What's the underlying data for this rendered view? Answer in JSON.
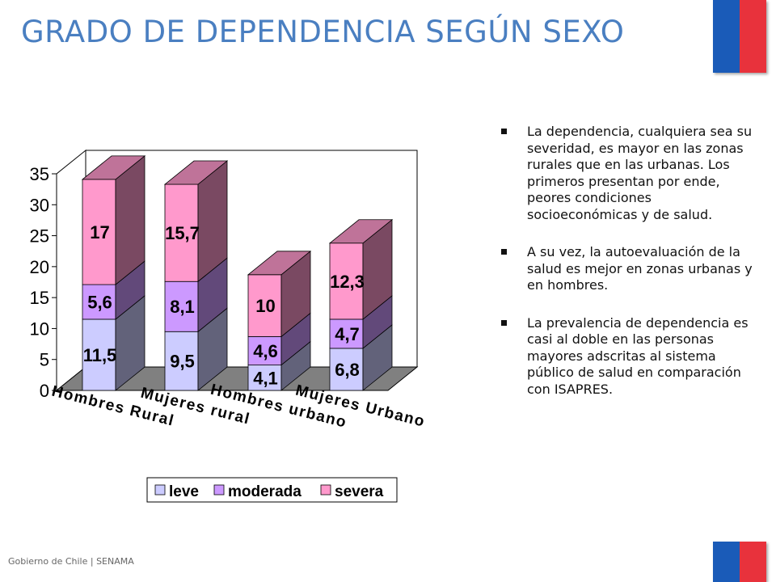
{
  "slide": {
    "title": "GRADO DE DEPENDENCIA SEGÚN SEXO",
    "footer": "Gobierno de Chile | SENAMA",
    "flag_colors": {
      "blue": "#1a5bb8",
      "red": "#e8323c"
    }
  },
  "bullets": [
    "La dependencia, cualquiera sea su severidad, es mayor en las zonas rurales que en las urbanas. Los primeros presentan por ende, peores condiciones socioeconómicas y de salud.",
    "A su vez, la autoevaluación de la salud es mejor en zonas urbanas y en hombres.",
    "La prevalencia de dependencia es casi al doble en las personas mayores adscritas al sistema público de salud en comparación con ISAPRES."
  ],
  "chart_data": {
    "type": "bar",
    "stacked": true,
    "style": "3d",
    "categories": [
      "Hombres Rural",
      "Mujeres rural",
      "Hombres urbano",
      "Mujeres Urbano"
    ],
    "series": [
      {
        "name": "leve",
        "values": [
          11.5,
          9.5,
          4.1,
          6.8
        ],
        "labels": [
          "11,5",
          "9,5",
          "4,1",
          "6,8"
        ],
        "color": "#ccccff"
      },
      {
        "name": "moderada",
        "values": [
          5.6,
          8.1,
          4.6,
          4.7
        ],
        "labels": [
          "5,6",
          "8,1",
          "4,6",
          "4,7"
        ],
        "color": "#cc99ff"
      },
      {
        "name": "severa",
        "values": [
          17,
          15.7,
          10,
          12.3
        ],
        "labels": [
          "17",
          "15,7",
          "10",
          "12,3"
        ],
        "color": "#ff99cc"
      }
    ],
    "ylim": [
      0,
      35
    ],
    "yticks": [
      0,
      5,
      10,
      15,
      20,
      25,
      30,
      35
    ],
    "grid": false,
    "legend": "bottom"
  }
}
